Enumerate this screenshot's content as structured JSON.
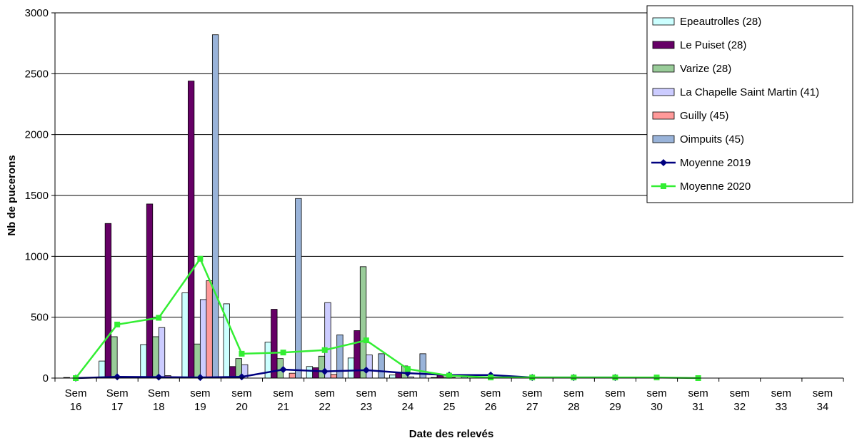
{
  "chart_data": {
    "type": "bar",
    "title": "",
    "xlabel": "Date des relevés",
    "ylabel": "Nb de pucerons",
    "ylim": [
      0,
      3000
    ],
    "yticks": [
      0,
      500,
      1000,
      1500,
      2000,
      2500,
      3000
    ],
    "grid": true,
    "legend_position": "top-right",
    "categories": [
      [
        "Sem",
        "16"
      ],
      [
        "Sem",
        "17"
      ],
      [
        "Sem",
        "18"
      ],
      [
        "sem",
        "19"
      ],
      [
        "sem",
        "20"
      ],
      [
        "sem",
        "21"
      ],
      [
        "sem",
        "22"
      ],
      [
        "sem",
        "23"
      ],
      [
        "sem",
        "24"
      ],
      [
        "sem",
        "25"
      ],
      [
        "sem",
        "26"
      ],
      [
        "sem",
        "27"
      ],
      [
        "sem",
        "28"
      ],
      [
        "sem",
        "29"
      ],
      [
        "sem",
        "30"
      ],
      [
        "sem",
        "31"
      ],
      [
        "sem",
        "32"
      ],
      [
        "sem",
        "33"
      ],
      [
        "sem",
        "34"
      ]
    ],
    "series": [
      {
        "name": "Epeautrolles (28)",
        "kind": "bar",
        "color": "#ccffff",
        "values": [
          0,
          140,
          275,
          700,
          610,
          295,
          95,
          165,
          25,
          5,
          0,
          0,
          0,
          0,
          0,
          0,
          0,
          0,
          0
        ]
      },
      {
        "name": "Le Puiset (28)",
        "kind": "bar",
        "color": "#660066",
        "values": [
          5,
          1270,
          1430,
          2440,
          95,
          565,
          85,
          390,
          45,
          30,
          0,
          0,
          0,
          0,
          0,
          0,
          0,
          0,
          0
        ]
      },
      {
        "name": "Varize (28)",
        "kind": "bar",
        "color": "#99cc99",
        "values": [
          0,
          340,
          340,
          280,
          160,
          160,
          180,
          915,
          100,
          10,
          0,
          0,
          0,
          0,
          0,
          0,
          0,
          0,
          0
        ]
      },
      {
        "name": "La Chapelle Saint Martin (41)",
        "kind": "bar",
        "color": "#ccccff",
        "values": [
          0,
          0,
          415,
          645,
          110,
          0,
          620,
          190,
          10,
          5,
          0,
          0,
          0,
          0,
          0,
          0,
          0,
          0,
          0
        ]
      },
      {
        "name": "Guilly (45)",
        "kind": "bar",
        "color": "#ff9999",
        "values": [
          0,
          0,
          20,
          800,
          0,
          40,
          30,
          0,
          0,
          0,
          0,
          0,
          0,
          0,
          0,
          0,
          0,
          0,
          0
        ]
      },
      {
        "name": "Oimpuits (45)",
        "kind": "bar",
        "color": "#99b3d9",
        "values": [
          0,
          0,
          0,
          2820,
          0,
          1475,
          355,
          200,
          200,
          10,
          0,
          5,
          0,
          0,
          5,
          0,
          0,
          0,
          0
        ]
      },
      {
        "name": "Moyenne 2019",
        "kind": "line",
        "marker": "diamond",
        "color": "#000080",
        "values": [
          0,
          10,
          8,
          5,
          10,
          70,
          55,
          65,
          40,
          25,
          25,
          5,
          5,
          5,
          null,
          null,
          null,
          null,
          null
        ]
      },
      {
        "name": "Moyenne 2020",
        "kind": "line",
        "marker": "square",
        "color": "#33ee33",
        "values": [
          0,
          440,
          495,
          980,
          200,
          210,
          230,
          310,
          75,
          20,
          5,
          5,
          5,
          5,
          5,
          0,
          null,
          null,
          null
        ]
      }
    ]
  }
}
